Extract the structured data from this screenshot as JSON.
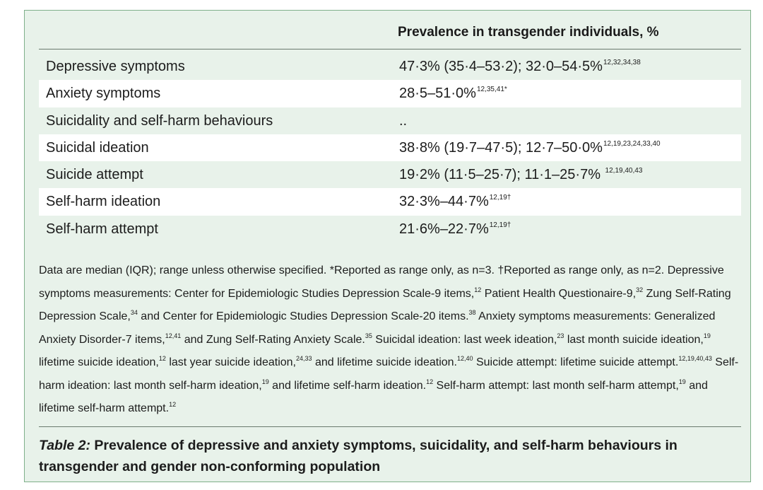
{
  "table": {
    "column_header": "Prevalence in transgender individuals, %",
    "rows": [
      {
        "label": "Depressive symptoms",
        "value": "47·3% (35·4–53·2); 32·0–54·5%",
        "refs": "12,32,34,38"
      },
      {
        "label": "Anxiety symptoms",
        "value": "28·5–51·0%",
        "refs": "12,35,41*"
      },
      {
        "label": "Suicidality and self-harm behaviours",
        "value": "..",
        "refs": ""
      },
      {
        "label": "Suicidal ideation",
        "value": "38·8% (19·7–47·5); 12·7–50·0%",
        "refs": "12,19,23,24,33,40"
      },
      {
        "label": "Suicide attempt",
        "value": "19·2% (11·5–25·7); 11·1–25·7% ",
        "refs": "12,19,40,43"
      },
      {
        "label": "Self-harm ideation",
        "value": "32·3%–44·7%",
        "refs": "12,19†"
      },
      {
        "label": "Self-harm attempt",
        "value": "21·6%–22·7%",
        "refs": "12,19†"
      }
    ]
  },
  "footnote": [
    {
      "t": "Data are median (IQR); range unless otherwise specified. *Reported as range only, as n=3. †Reported as range only, as n=2. Depressive symptoms measurements: Center for Epidemiologic Studies Depression Scale-9 items,"
    },
    {
      "s": "12"
    },
    {
      "t": " Patient Health Questionaire-9,"
    },
    {
      "s": "32"
    },
    {
      "t": " Zung Self-Rating Depression Scale,"
    },
    {
      "s": "34"
    },
    {
      "t": " and Center for Epidemiologic Studies Depression Scale-20 items."
    },
    {
      "s": "38"
    },
    {
      "t": " Anxiety symptoms measurements: Generalized Anxiety Disorder-7 items,"
    },
    {
      "s": "12,41"
    },
    {
      "t": " and Zung Self-Rating Anxiety Scale."
    },
    {
      "s": "35"
    },
    {
      "t": " Suicidal ideation: last week ideation,"
    },
    {
      "s": "23"
    },
    {
      "t": " last month suicide ideation,"
    },
    {
      "s": "19"
    },
    {
      "t": " lifetime suicide ideation,"
    },
    {
      "s": "12"
    },
    {
      "t": " last year suicide ideation,"
    },
    {
      "s": "24,33"
    },
    {
      "t": " and lifetime suicide ideation."
    },
    {
      "s": "12,40"
    },
    {
      "t": " Suicide attempt: lifetime suicide attempt."
    },
    {
      "s": "12,19,40,43"
    },
    {
      "t": " Self-harm ideation: last month self-harm ideation,"
    },
    {
      "s": "19"
    },
    {
      "t": " and lifetime self-harm ideation."
    },
    {
      "s": "12"
    },
    {
      "t": " Self-harm attempt: last month self-harm attempt,"
    },
    {
      "s": "19"
    },
    {
      "t": " and lifetime self-harm attempt."
    },
    {
      "s": "12"
    }
  ],
  "caption": {
    "label": "Table 2:",
    "text": " Prevalence of depressive and anxiety symptoms, suicidality, and self-harm behaviours in transgender and gender non-conforming population"
  },
  "colors": {
    "panel_bg": "#e8f2ea",
    "panel_border": "#7fb08a",
    "row_white": "#ffffff"
  }
}
